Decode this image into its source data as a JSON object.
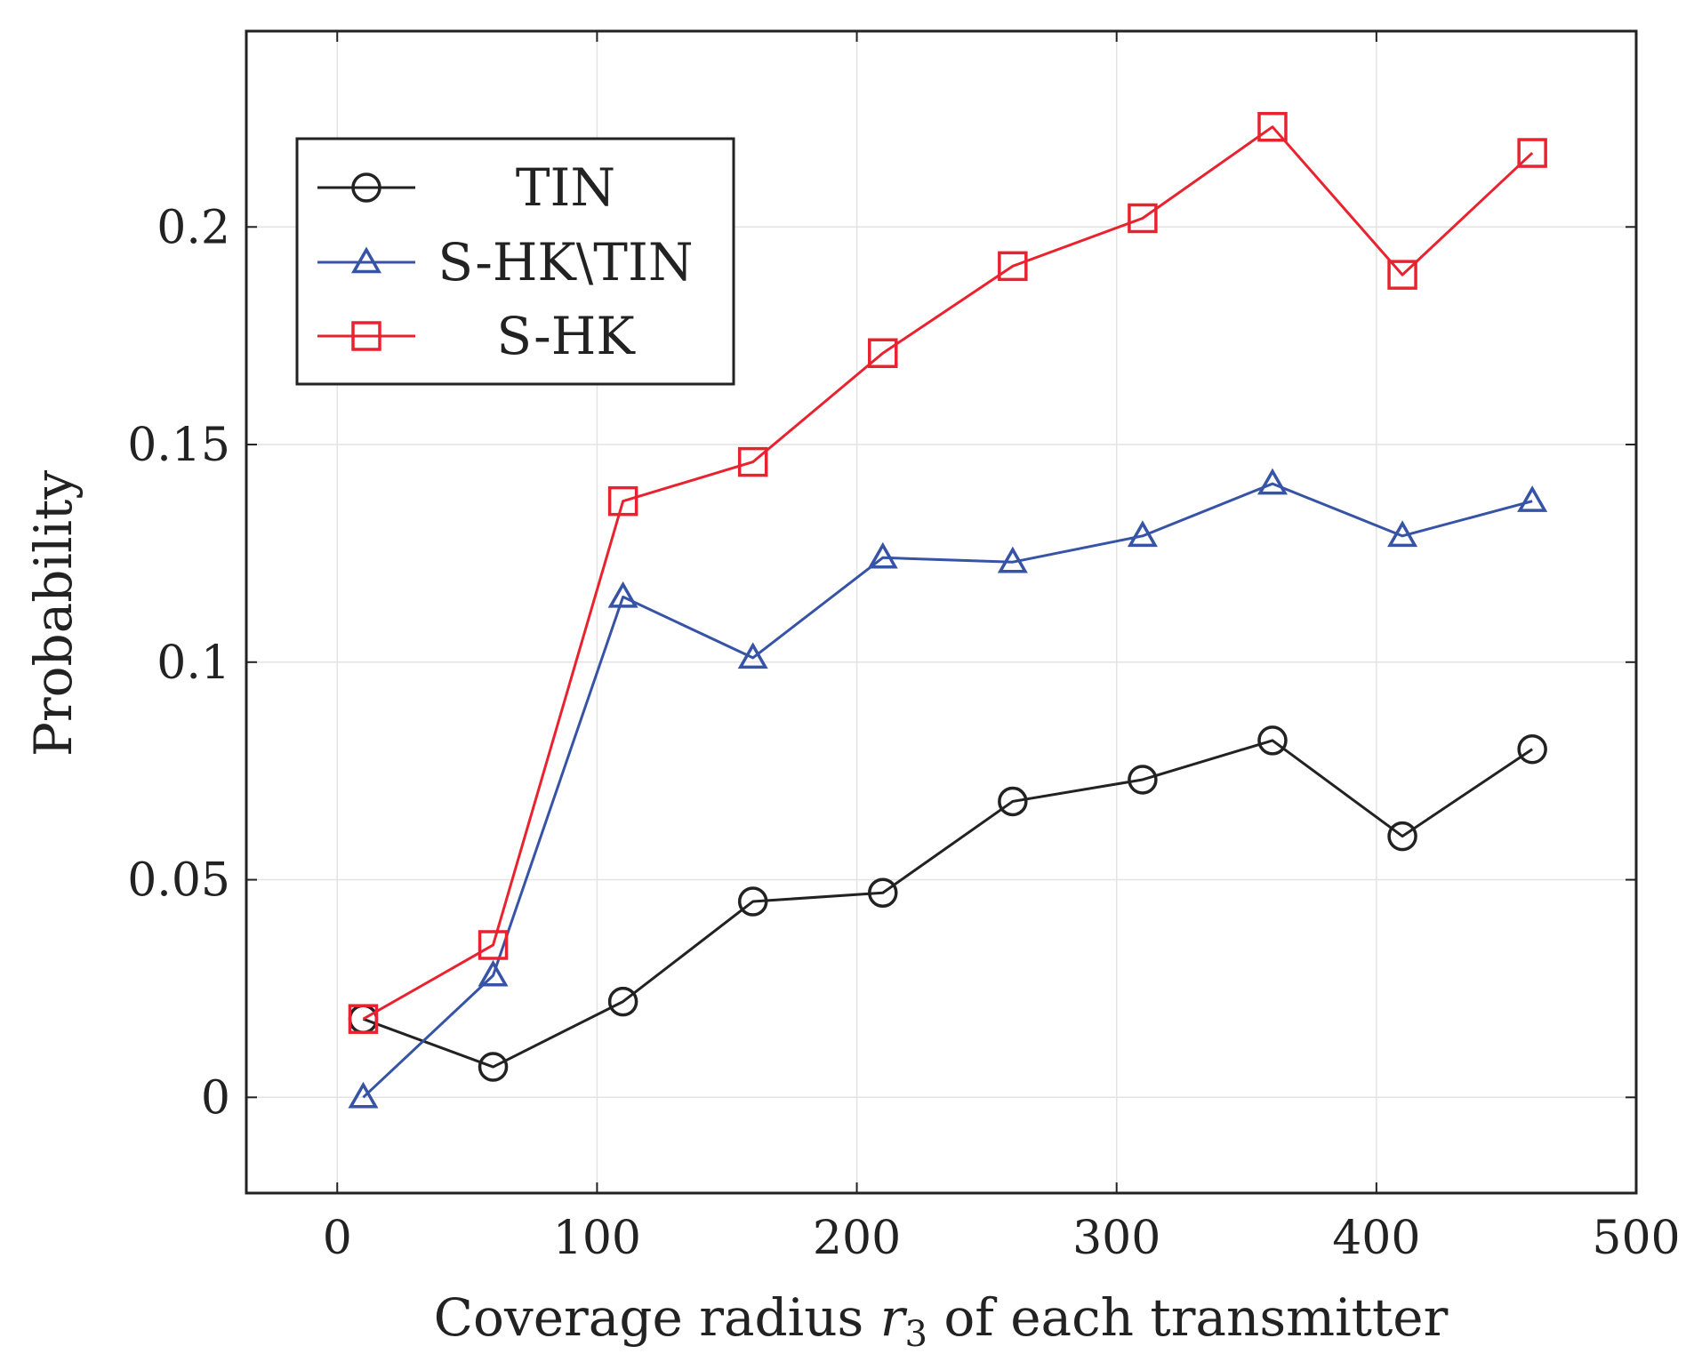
{
  "chart_data": {
    "type": "line",
    "title": "",
    "xlabel": "Coverage radius r3 of each transmitter",
    "xlabel_parts": {
      "pre": "Coverage radius ",
      "var": "r",
      "sub": "3",
      "post": " of each transmitter"
    },
    "ylabel": "Probability",
    "xlim": [
      -35,
      500
    ],
    "ylim": [
      -0.022,
      0.245
    ],
    "xticks": [
      0,
      100,
      200,
      300,
      400,
      500
    ],
    "xtick_labels": [
      "0",
      "100",
      "200",
      "300",
      "400",
      "500"
    ],
    "yticks": [
      0,
      0.05,
      0.1,
      0.15,
      0.2
    ],
    "ytick_labels": [
      "0",
      "0.05",
      "0.1",
      "0.15",
      "0.2"
    ],
    "grid": true,
    "legend_position": "top-left",
    "x": [
      10,
      60,
      110,
      160,
      210,
      260,
      310,
      360,
      410,
      460
    ],
    "series": [
      {
        "name": "TIN",
        "color": "#222222",
        "marker": "circle",
        "values": [
          0.018,
          0.007,
          0.022,
          0.045,
          0.047,
          0.068,
          0.073,
          0.082,
          0.06,
          0.08
        ]
      },
      {
        "name": "S-HK\\TIN",
        "color": "#3653a6",
        "marker": "triangle",
        "values": [
          0.0,
          0.028,
          0.115,
          0.101,
          0.124,
          0.123,
          0.129,
          0.141,
          0.129,
          0.137
        ]
      },
      {
        "name": "S-HK",
        "color": "#e8232f",
        "marker": "square",
        "values": [
          0.018,
          0.035,
          0.137,
          0.146,
          0.171,
          0.191,
          0.202,
          0.223,
          0.189,
          0.217
        ]
      }
    ]
  }
}
